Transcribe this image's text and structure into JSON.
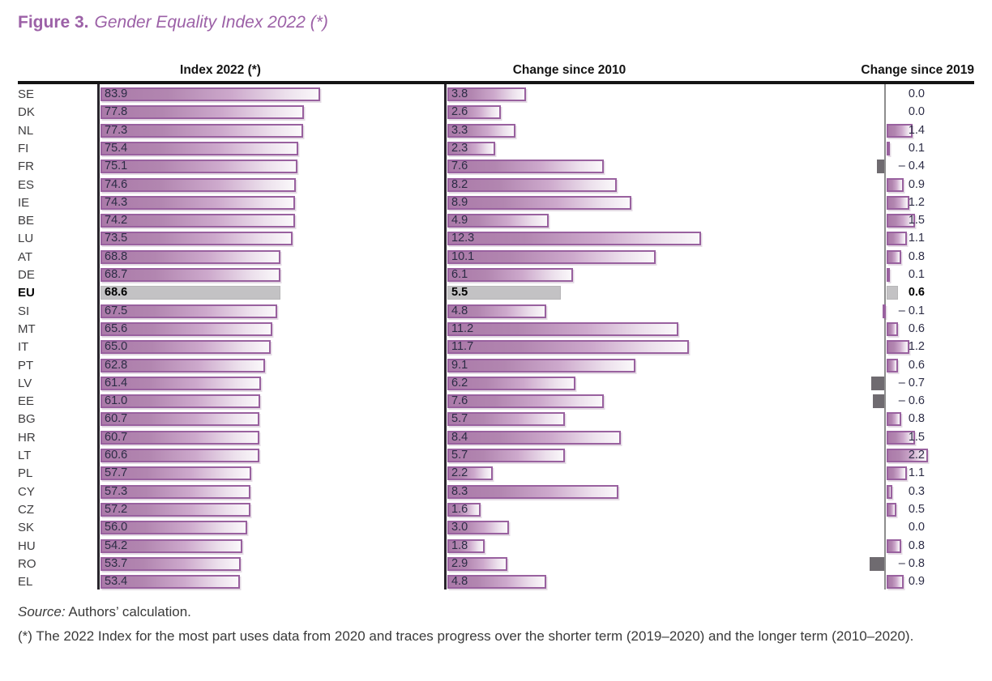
{
  "figure": {
    "label": "Figure 3.",
    "title": "Gender Equality Index 2022 (*)"
  },
  "table": {
    "col_headers": [
      "Index 2022 (*)",
      "Change since 2010",
      "Change since 2019"
    ]
  },
  "chart_data": {
    "type": "bar",
    "orientation": "horizontal",
    "title": "Gender Equality Index 2022 (*)",
    "categories": [
      "SE",
      "DK",
      "NL",
      "FI",
      "FR",
      "ES",
      "IE",
      "BE",
      "LU",
      "AT",
      "DE",
      "EU",
      "SI",
      "MT",
      "IT",
      "PT",
      "LV",
      "EE",
      "BG",
      "HR",
      "LT",
      "PL",
      "CY",
      "CZ",
      "SK",
      "HU",
      "RO",
      "EL"
    ],
    "series": [
      {
        "name": "Index 2022 (*)",
        "values": [
          83.9,
          77.8,
          77.3,
          75.4,
          75.1,
          74.6,
          74.3,
          74.2,
          73.5,
          68.8,
          68.7,
          68.6,
          67.5,
          65.6,
          65.0,
          62.8,
          61.4,
          61.0,
          60.7,
          60.7,
          60.6,
          57.7,
          57.3,
          57.2,
          56.0,
          54.2,
          53.7,
          53.4
        ],
        "xmin": 0,
        "xmax": 84
      },
      {
        "name": "Change since 2010",
        "values": [
          3.8,
          2.6,
          3.3,
          2.3,
          7.6,
          8.2,
          8.9,
          4.9,
          12.3,
          10.1,
          6.1,
          5.5,
          4.8,
          11.2,
          11.7,
          9.1,
          6.2,
          7.6,
          5.7,
          8.4,
          5.7,
          2.2,
          8.3,
          1.6,
          3.0,
          1.8,
          2.9,
          4.8
        ],
        "xmin": 0,
        "xmax": 12.3
      },
      {
        "name": "Change since 2019",
        "values": [
          0.0,
          0.0,
          1.4,
          0.1,
          -0.4,
          0.9,
          1.2,
          1.5,
          1.1,
          0.8,
          0.1,
          0.6,
          -0.1,
          0.6,
          1.2,
          0.6,
          -0.7,
          -0.6,
          0.8,
          1.5,
          2.2,
          1.1,
          0.3,
          0.5,
          0.0,
          0.8,
          -0.8,
          0.9
        ],
        "xmin": -0.8,
        "xmax": 2.2,
        "bar_styles": [
          "none",
          "none",
          "purple",
          "purple",
          "gray",
          "purple",
          "purple",
          "purple",
          "purple",
          "purple",
          "purple",
          "eu",
          "purple",
          "purple",
          "purple",
          "purple",
          "gray",
          "gray",
          "purple",
          "purple",
          "purple",
          "purple",
          "purple",
          "purple",
          "none",
          "purple",
          "gray",
          "purple"
        ]
      }
    ],
    "highlight_category": "EU",
    "legend": "none",
    "grid": "off",
    "value_labels": "shown at bar start for first two panels; right-aligned column for third panel",
    "negative_format_prefix": "– "
  },
  "colors": {
    "title": "#9c61a7",
    "bar_border": "#99619f",
    "bar_fill_dark": "#ab7aa9",
    "bar_fill_light": "#faf8fa",
    "highlight_fill": "#c3c2c4",
    "negative_fill": "#6f6b70",
    "axis_dark": "#28242b",
    "axis_gray": "#8d8d8d",
    "value_text": "#2c2c45"
  },
  "footer": {
    "source_label": "Source:",
    "source_text": " Authors’ calculation.",
    "note": "(*) The 2022 Index for the most part uses data from 2020 and traces progress over the shorter term (2019–2020) and the longer term (2010–2020)."
  }
}
